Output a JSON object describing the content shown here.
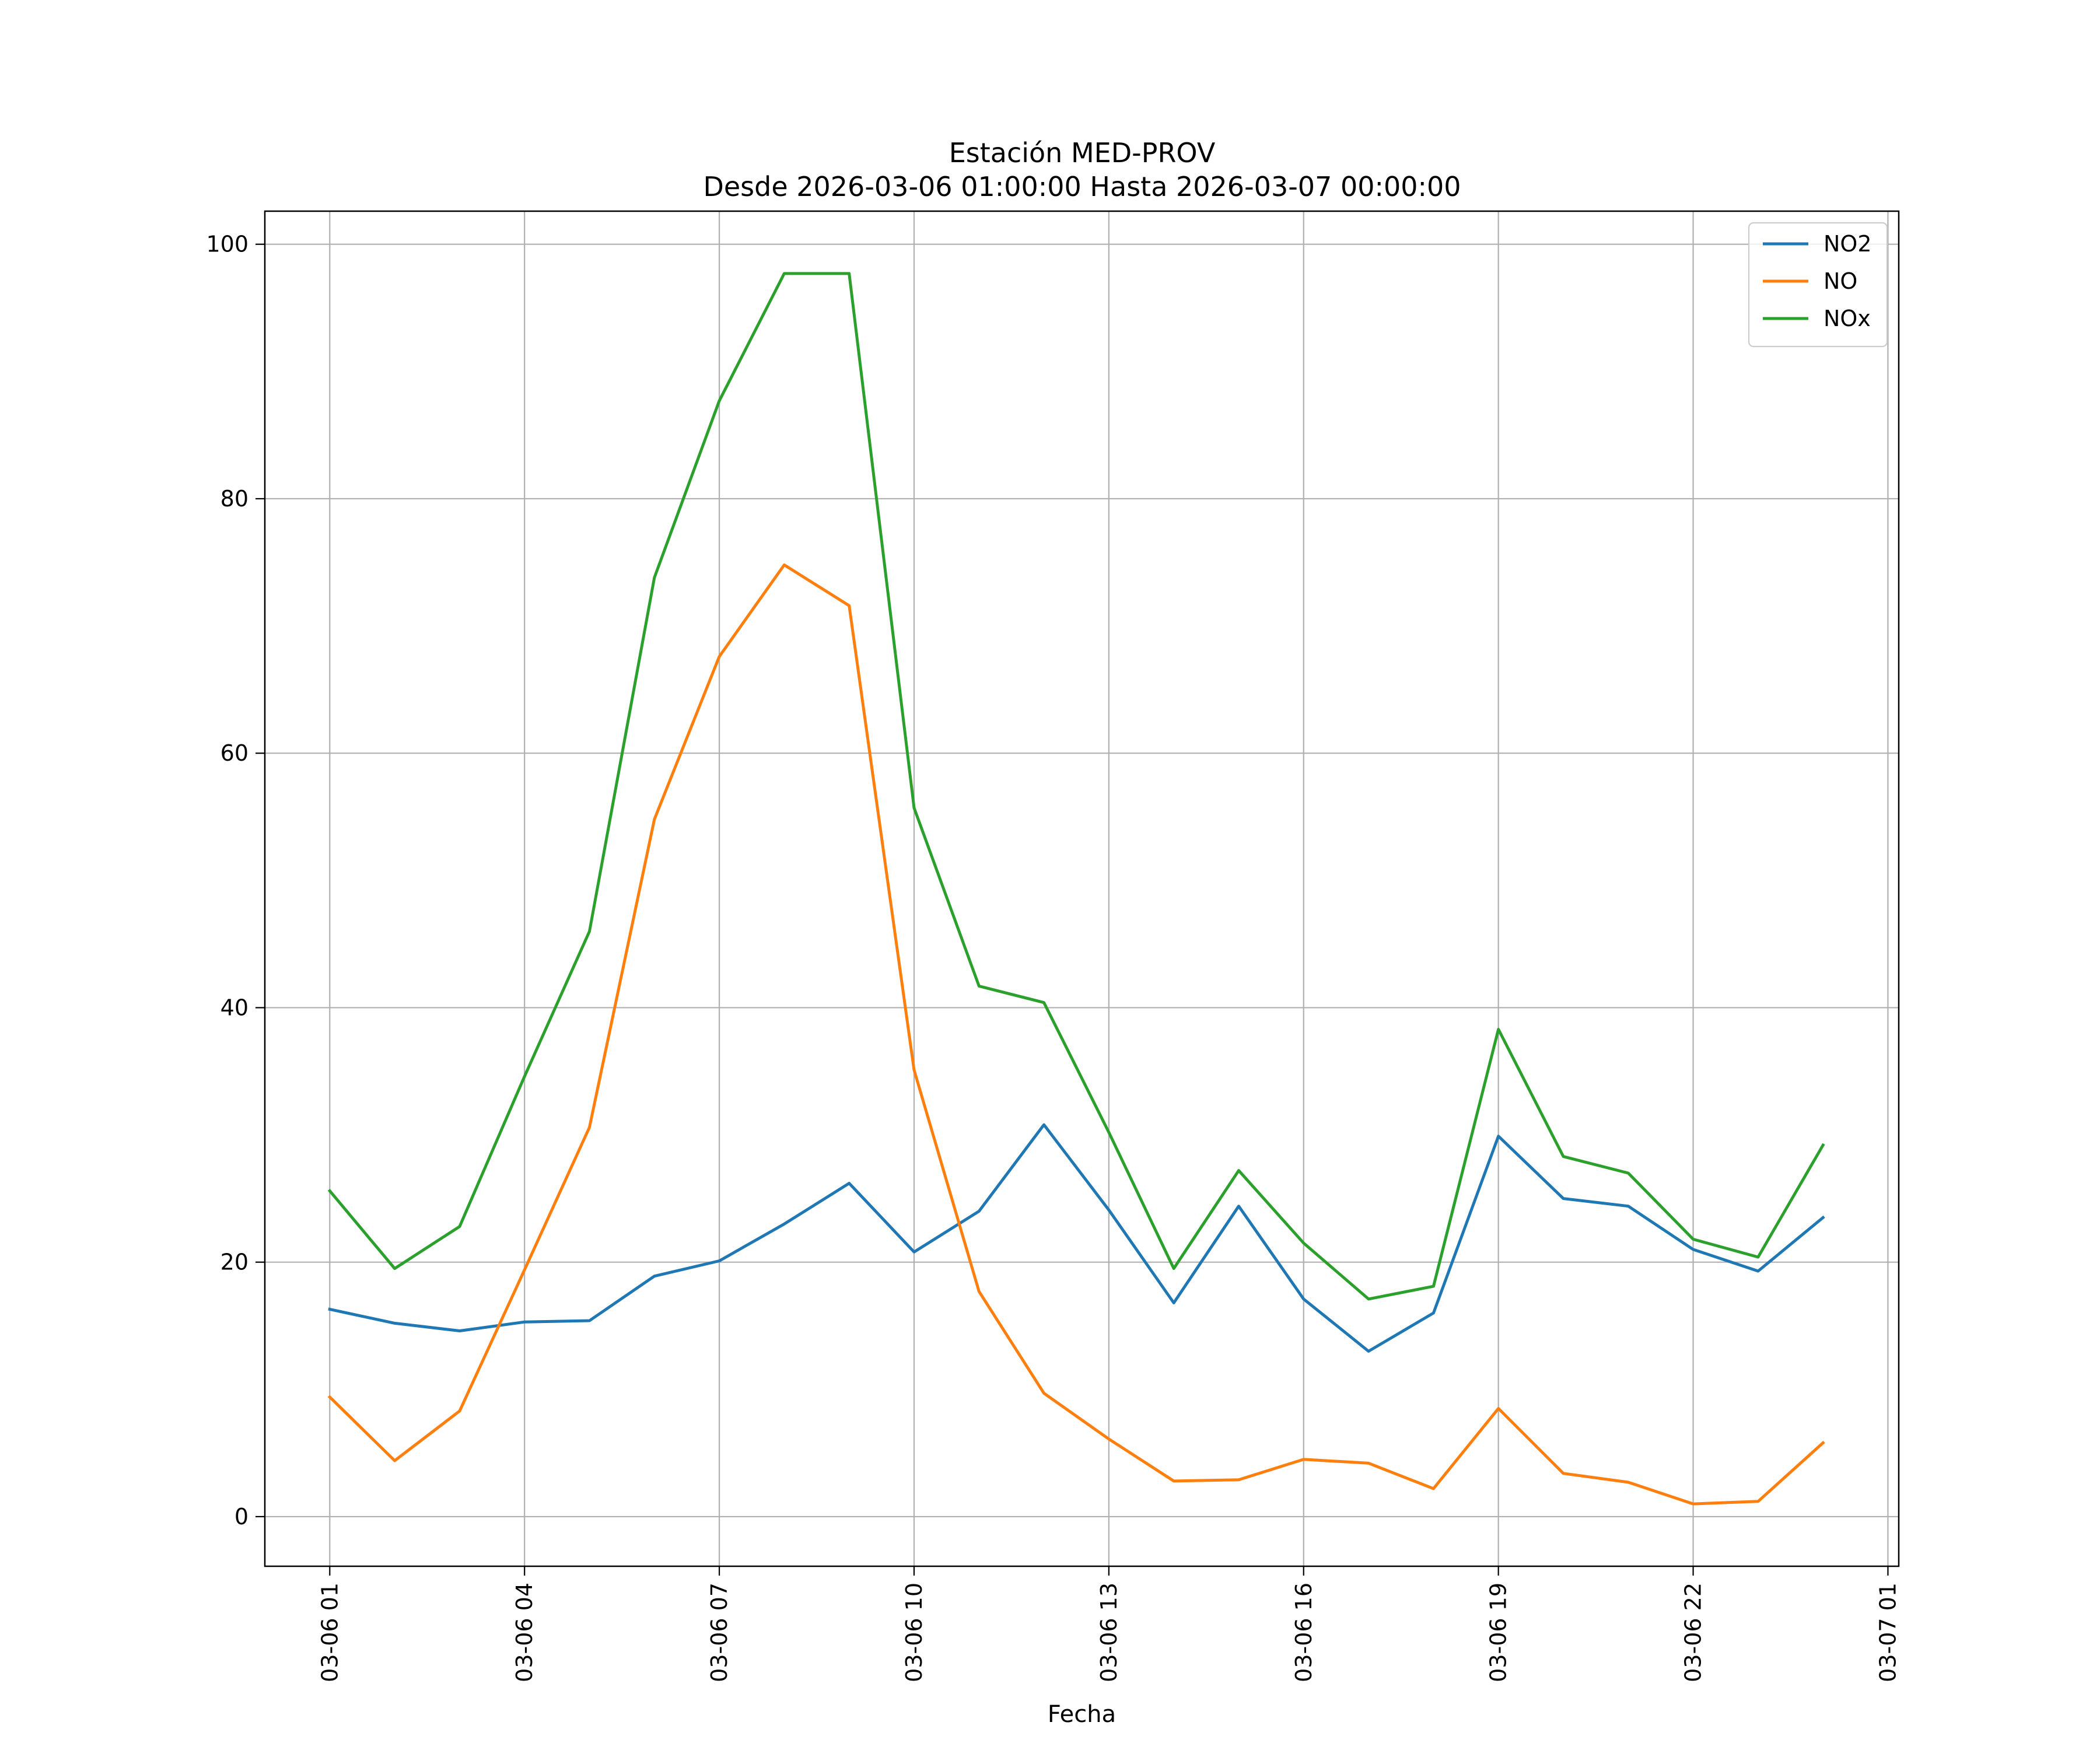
{
  "chart_data": {
    "type": "line",
    "title_line1": "Estación MED-PROV",
    "title_line2": "Desde 2026-03-06 01:00:00 Hasta 2026-03-07 00:00:00",
    "xlabel": "Fecha",
    "ylabel": "",
    "x": [
      "2026-03-06 01:00",
      "2026-03-06 02:00",
      "2026-03-06 03:00",
      "2026-03-06 04:00",
      "2026-03-06 05:00",
      "2026-03-06 06:00",
      "2026-03-06 07:00",
      "2026-03-06 08:00",
      "2026-03-06 09:00",
      "2026-03-06 10:00",
      "2026-03-06 11:00",
      "2026-03-06 12:00",
      "2026-03-06 13:00",
      "2026-03-06 14:00",
      "2026-03-06 15:00",
      "2026-03-06 16:00",
      "2026-03-06 17:00",
      "2026-03-06 18:00",
      "2026-03-06 19:00",
      "2026-03-06 20:00",
      "2026-03-06 21:00",
      "2026-03-06 22:00",
      "2026-03-06 23:00",
      "2026-03-07 00:00"
    ],
    "xlim": [
      "2026-03-06 00:00",
      "2026-03-07 01:10"
    ],
    "xticks": [
      {
        "value": "2026-03-06 01:00",
        "label": "03-06 01"
      },
      {
        "value": "2026-03-06 04:00",
        "label": "03-06 04"
      },
      {
        "value": "2026-03-06 07:00",
        "label": "03-06 07"
      },
      {
        "value": "2026-03-06 10:00",
        "label": "03-06 10"
      },
      {
        "value": "2026-03-06 13:00",
        "label": "03-06 13"
      },
      {
        "value": "2026-03-06 16:00",
        "label": "03-06 16"
      },
      {
        "value": "2026-03-06 19:00",
        "label": "03-06 19"
      },
      {
        "value": "2026-03-06 22:00",
        "label": "03-06 22"
      },
      {
        "value": "2026-03-07 01:00",
        "label": "03-07 01"
      }
    ],
    "ylim": [
      -3.9,
      102.6
    ],
    "yticks": [
      0,
      20,
      40,
      60,
      80,
      100
    ],
    "grid": true,
    "legend_position": "top-right",
    "series": [
      {
        "name": "NO2",
        "color": "#1f77b4",
        "values": [
          16.3,
          15.2,
          14.6,
          15.3,
          15.4,
          18.9,
          20.1,
          23.0,
          26.2,
          20.8,
          24.0,
          30.8,
          24.1,
          16.8,
          24.4,
          17.1,
          13.0,
          16.0,
          29.9,
          25.0,
          24.4,
          21.0,
          19.3,
          23.5
        ]
      },
      {
        "name": "NO",
        "color": "#ff7f0e",
        "values": [
          9.4,
          4.4,
          8.3,
          19.4,
          30.6,
          54.8,
          67.6,
          74.8,
          71.6,
          35.1,
          17.7,
          9.7,
          6.1,
          2.8,
          2.9,
          4.5,
          4.2,
          2.2,
          8.5,
          3.4,
          2.7,
          1.0,
          1.2,
          5.8
        ]
      },
      {
        "name": "NOx",
        "color": "#2ca02c",
        "values": [
          25.6,
          19.5,
          22.8,
          34.6,
          46.0,
          73.8,
          87.7,
          97.7,
          97.7,
          55.7,
          41.7,
          40.4,
          30.2,
          19.5,
          27.2,
          21.5,
          17.1,
          18.1,
          38.3,
          28.3,
          27.0,
          21.8,
          20.4,
          29.2
        ]
      }
    ]
  }
}
